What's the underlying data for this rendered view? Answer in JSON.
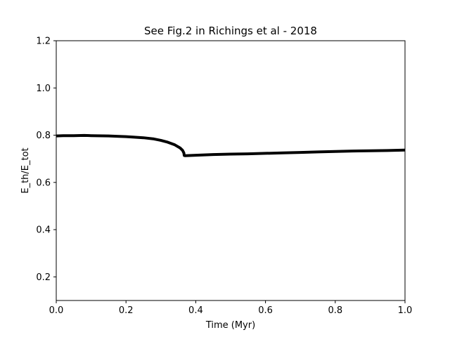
{
  "chart_data": {
    "type": "line",
    "title": "See Fig.2 in Richings et al - 2018",
    "xlabel": "Time (Myr)",
    "ylabel": "E_th/E_tot",
    "xlim": [
      0.0,
      1.0
    ],
    "ylim": [
      0.1,
      1.2
    ],
    "xticks": [
      0.0,
      0.2,
      0.4,
      0.6,
      0.8,
      1.0
    ],
    "xtick_labels": [
      "0.0",
      "0.2",
      "0.4",
      "0.6",
      "0.8",
      "1.0"
    ],
    "yticks": [
      0.2,
      0.4,
      0.6,
      0.8,
      1.0,
      1.2
    ],
    "ytick_labels": [
      "0.2",
      "0.4",
      "0.6",
      "0.8",
      "1.0",
      "1.2"
    ],
    "grid": false,
    "series": [
      {
        "color": "#000000",
        "points": [
          [
            0.0,
            0.797
          ],
          [
            0.02,
            0.798
          ],
          [
            0.05,
            0.798
          ],
          [
            0.08,
            0.799
          ],
          [
            0.1,
            0.798
          ],
          [
            0.15,
            0.797
          ],
          [
            0.18,
            0.795
          ],
          [
            0.2,
            0.794
          ],
          [
            0.22,
            0.792
          ],
          [
            0.25,
            0.789
          ],
          [
            0.28,
            0.784
          ],
          [
            0.3,
            0.778
          ],
          [
            0.32,
            0.77
          ],
          [
            0.34,
            0.759
          ],
          [
            0.355,
            0.746
          ],
          [
            0.362,
            0.736
          ],
          [
            0.366,
            0.725
          ],
          [
            0.367,
            0.714
          ],
          [
            0.37,
            0.713
          ],
          [
            0.4,
            0.715
          ],
          [
            0.45,
            0.718
          ],
          [
            0.5,
            0.72
          ],
          [
            0.55,
            0.721
          ],
          [
            0.6,
            0.723
          ],
          [
            0.65,
            0.725
          ],
          [
            0.7,
            0.727
          ],
          [
            0.75,
            0.729
          ],
          [
            0.8,
            0.731
          ],
          [
            0.85,
            0.733
          ],
          [
            0.9,
            0.734
          ],
          [
            0.95,
            0.735
          ],
          [
            1.0,
            0.737
          ]
        ]
      }
    ]
  }
}
